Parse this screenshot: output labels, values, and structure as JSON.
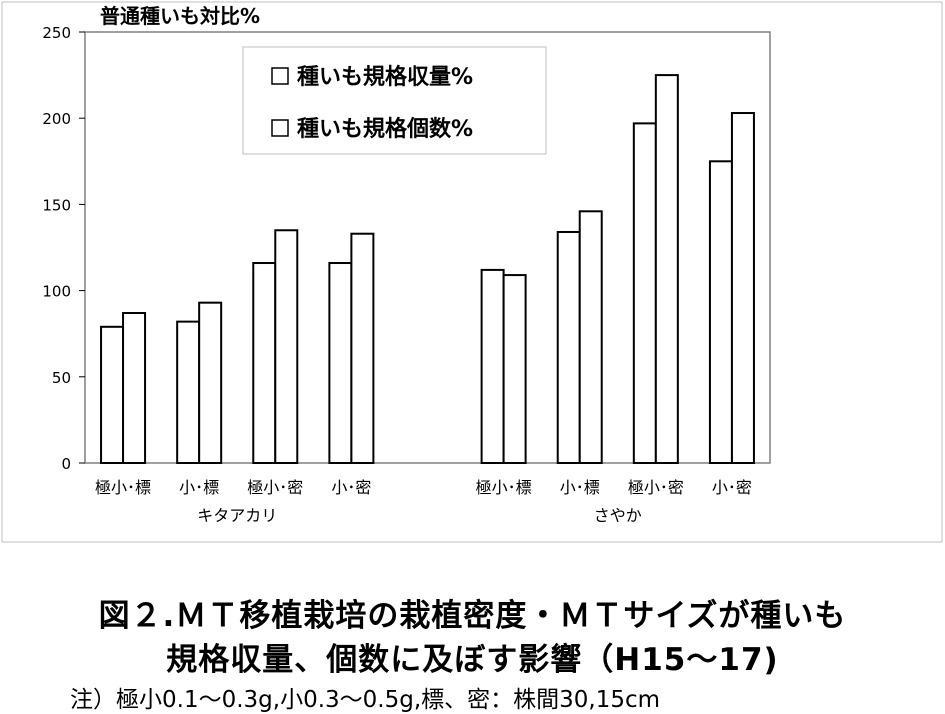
{
  "chart_data": {
    "type": "bar",
    "ylabel": "普通種いも対比%",
    "ylim": [
      0,
      250
    ],
    "yticks": [
      0,
      50,
      100,
      150,
      200,
      250
    ],
    "grid": false,
    "legend_position": "top-center",
    "series": [
      {
        "name": "種いも規格収量%",
        "color": "#ffffff"
      },
      {
        "name": "種いも規格個数%",
        "color": "#ffffff"
      }
    ],
    "groups": [
      {
        "label": "キタアカリ",
        "categories": [
          "極小･標",
          "小･標",
          "極小･密",
          "小･密"
        ],
        "values": [
          [
            79,
            87
          ],
          [
            82,
            93
          ],
          [
            116,
            135
          ],
          [
            116,
            133
          ]
        ]
      },
      {
        "label": "さやか",
        "categories": [
          "極小･標",
          "小･標",
          "極小･密",
          "小･密"
        ],
        "values": [
          [
            112,
            109
          ],
          [
            134,
            146
          ],
          [
            197,
            225
          ],
          [
            175,
            203
          ]
        ]
      }
    ]
  },
  "caption": {
    "line1": "図２.ＭＴ移植栽培の栽植密度・ＭＴサイズが種いも",
    "line2": "規格収量、個数に及ぼす影響（H15～17)"
  },
  "note": "注）極小0.1～0.3g,小0.3～0.5g,標、密：株間30,15cm"
}
